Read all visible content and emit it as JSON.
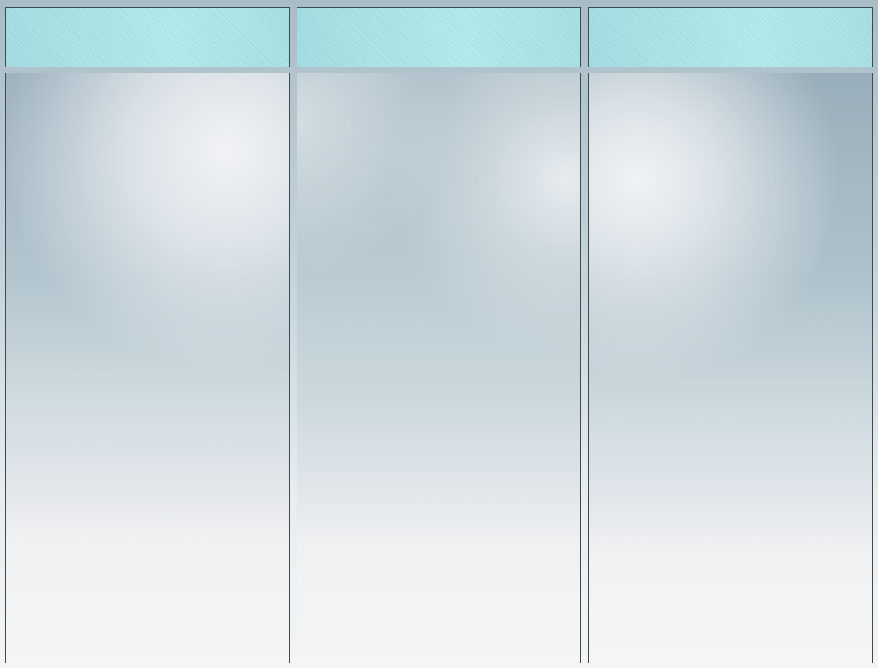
{
  "columns": [
    {
      "header": "",
      "body": ""
    },
    {
      "header": "",
      "body": ""
    },
    {
      "header": "",
      "body": ""
    }
  ],
  "colors": {
    "header_fill": "#b3e7ea",
    "panel_top": "#a9bcc6",
    "panel_bottom": "#f5f5f5",
    "border": "#3d4a50"
  }
}
